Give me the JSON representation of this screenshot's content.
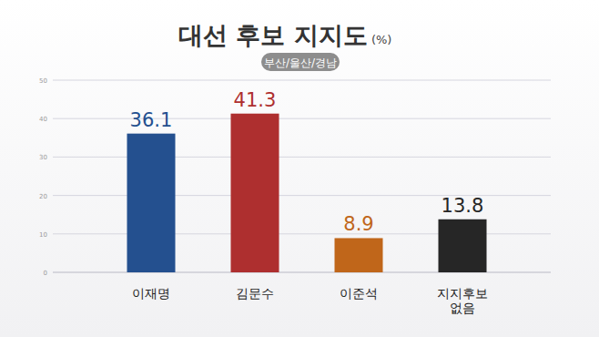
{
  "chart_data": {
    "type": "bar",
    "title": "대선 후보 지지도",
    "ylabel": "(%)",
    "subtitle": "부산/울산/경남",
    "categories": [
      "이재명",
      "김문수",
      "이준석",
      "지지후보\n없음"
    ],
    "values": [
      36.1,
      41.3,
      8.9,
      13.8
    ],
    "colors": [
      "#24508f",
      "#ae2f2f",
      "#c0661a",
      "#262626"
    ],
    "ylim": [
      0,
      50
    ],
    "yticks": [
      0,
      10,
      20,
      30,
      40,
      50
    ],
    "grid": true,
    "data_labels": true
  }
}
